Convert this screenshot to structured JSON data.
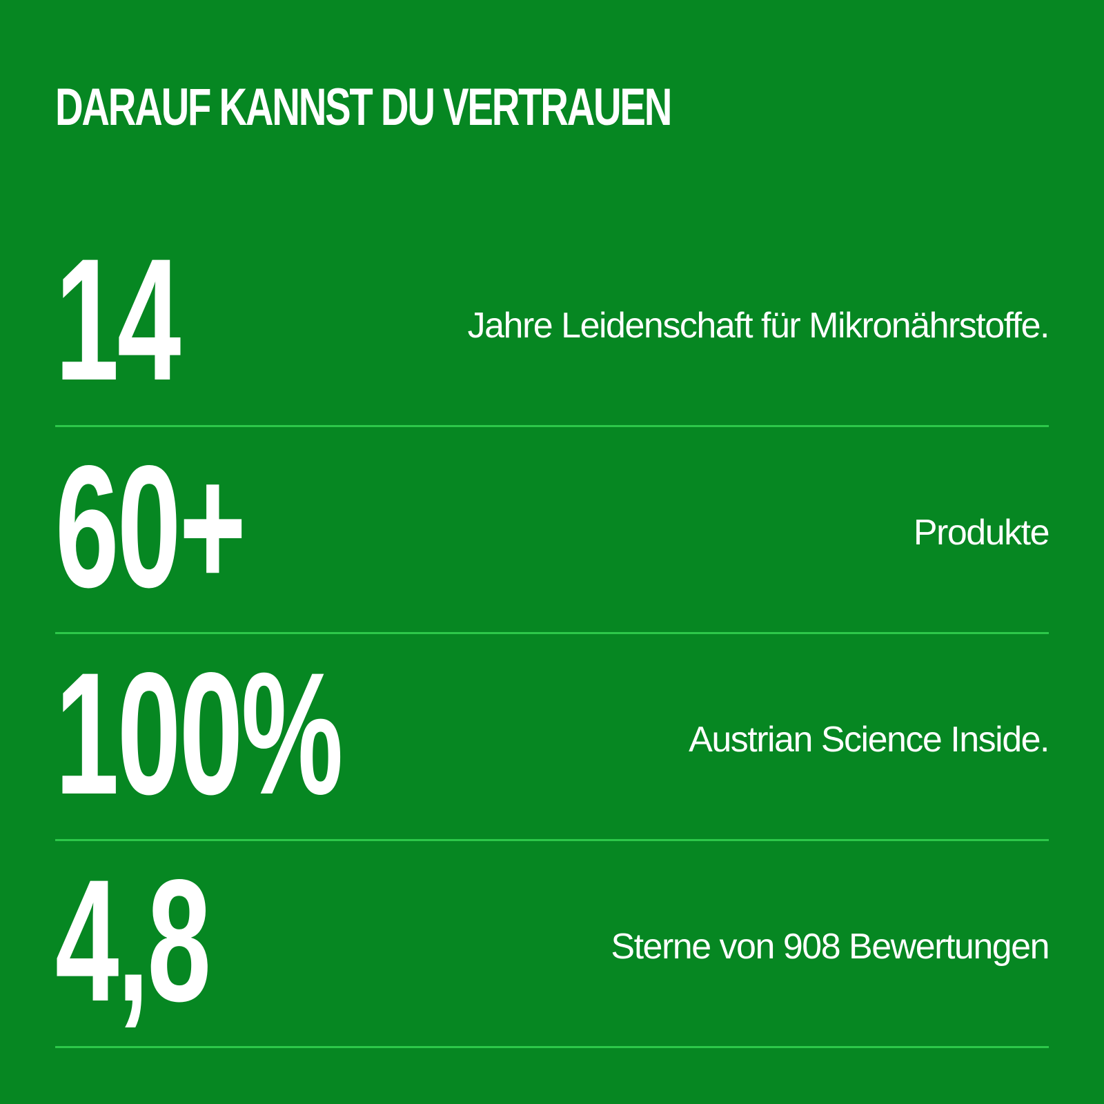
{
  "title": "DARAUF KANNST DU VERTRAUEN",
  "colors": {
    "background": "#068722",
    "text": "#ffffff",
    "divider": "#2dc84a"
  },
  "stats": [
    {
      "value": "14",
      "description": "Jahre Leidenschaft für Mikronährstoffe."
    },
    {
      "value": "60+",
      "description": "Produkte"
    },
    {
      "value": "100%",
      "description": "Austrian Science Inside."
    },
    {
      "value": "4,8",
      "description": "Sterne von 908 Bewertungen"
    }
  ]
}
